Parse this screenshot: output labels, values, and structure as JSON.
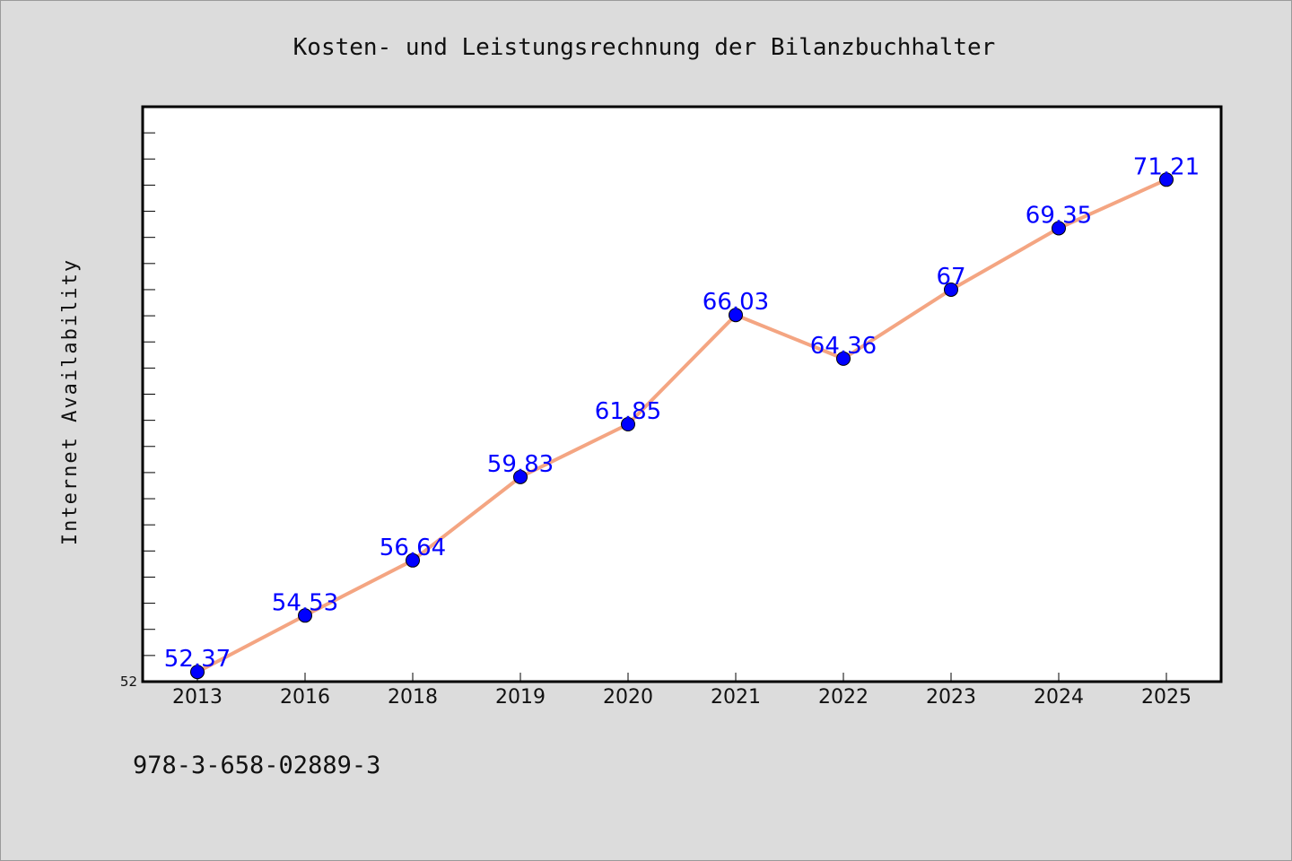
{
  "chart_data": {
    "type": "line",
    "title": "Kosten- und Leistungsrechnung der Bilanzbuchhalter",
    "xlabel": "",
    "ylabel": "Internet Availability",
    "categories": [
      "2013",
      "2016",
      "2018",
      "2019",
      "2020",
      "2021",
      "2022",
      "2023",
      "2024",
      "2025"
    ],
    "series": [
      {
        "values": [
          52.37,
          54.53,
          56.64,
          59.83,
          61.85,
          66.03,
          64.36,
          67,
          69.35,
          71.21
        ],
        "data_labels": [
          "52.37",
          "54.53",
          "56.64",
          "59.83",
          "61.85",
          "66.03",
          "64.36",
          "67",
          "69.35",
          "71.21"
        ]
      }
    ],
    "ylim": [
      52,
      74
    ],
    "ytick_label": "52",
    "grid": false,
    "legend": "none",
    "colors": {
      "line": "#f4a582",
      "marker": "#0000ff",
      "data_label": "#0000ff",
      "plot_background": "#ffffff",
      "figure_background": "#dcdcdc"
    }
  },
  "footer": {
    "isbn": "978-3-658-02889-3"
  }
}
